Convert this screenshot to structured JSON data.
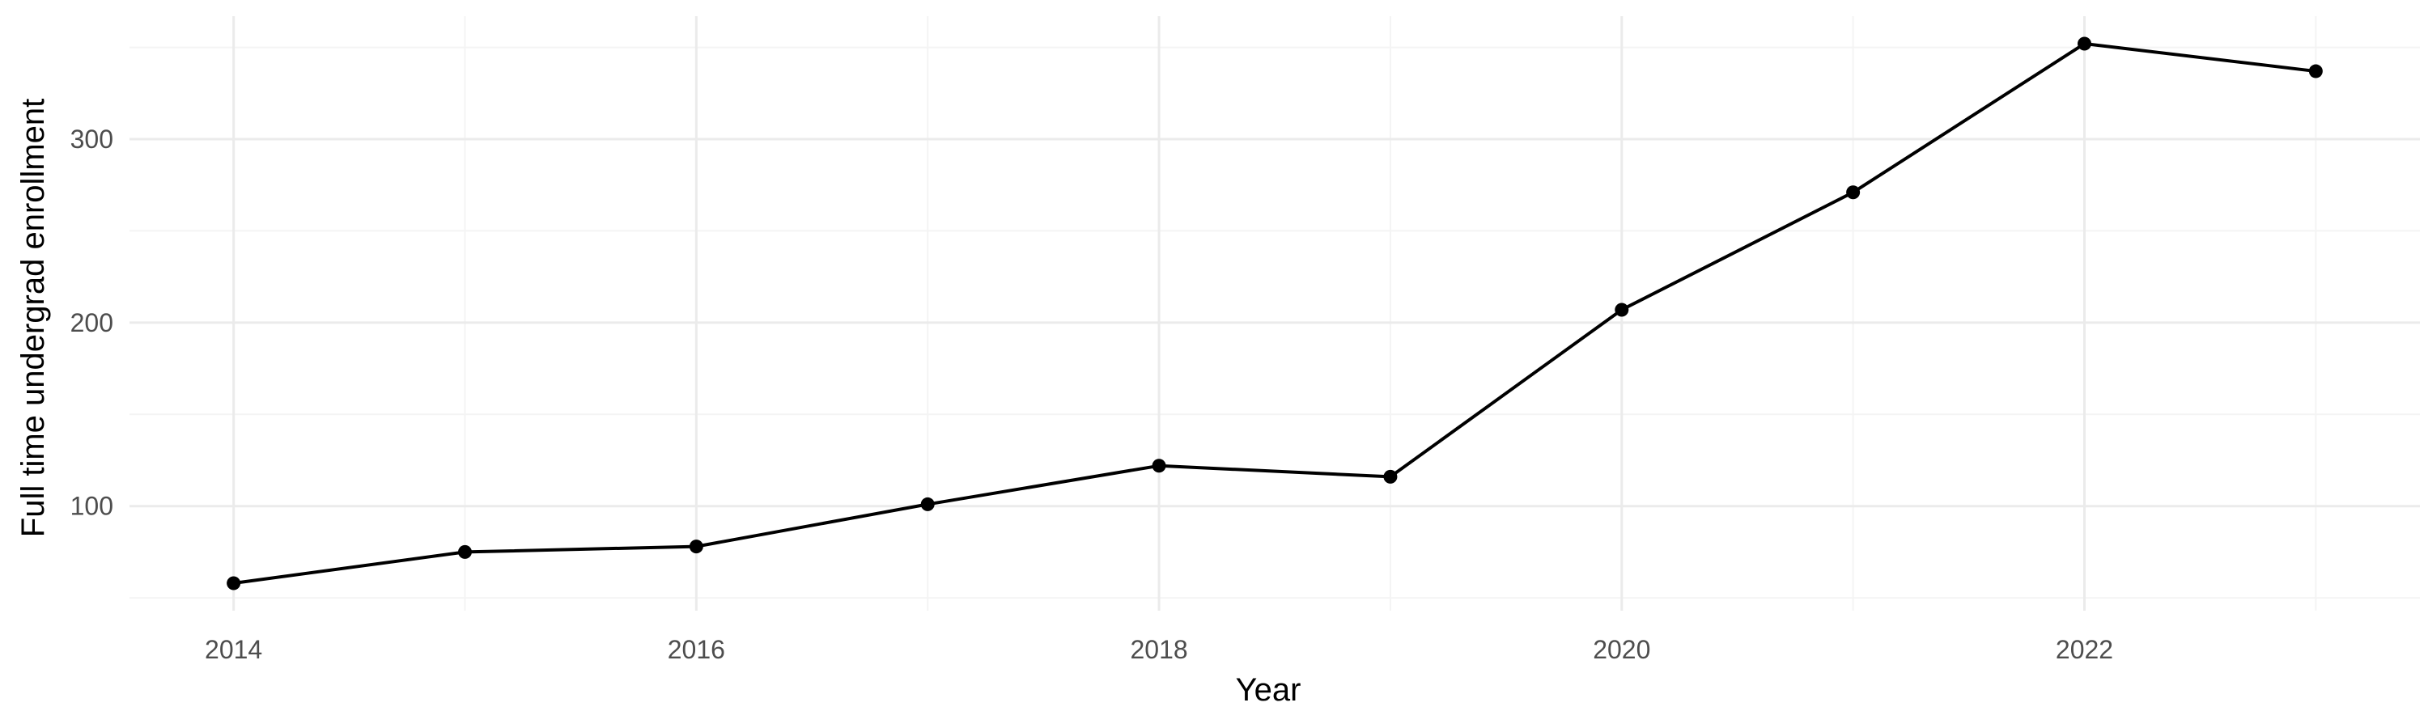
{
  "chart_data": {
    "type": "line",
    "title": "",
    "xlabel": "Year",
    "ylabel": "Full time undergrad enrollment",
    "x": [
      2014,
      2015,
      2016,
      2017,
      2018,
      2019,
      2020,
      2021,
      2022,
      2023
    ],
    "series": [
      {
        "values": [
          58,
          75,
          78,
          101,
          122,
          116,
          207,
          271,
          352,
          337
        ]
      }
    ],
    "xlim": [
      2013.55,
      2023.45
    ],
    "ylim": [
      43,
      367
    ],
    "x_ticks": [
      2014,
      2016,
      2018,
      2020,
      2022
    ],
    "x_tick_labels": [
      "2014",
      "2016",
      "2018",
      "2020",
      "2022"
    ],
    "y_ticks": [
      100,
      200,
      300
    ],
    "y_tick_labels": [
      "100",
      "200",
      "300"
    ],
    "grid": true,
    "legend": "none",
    "colors": {
      "line": "#000000",
      "point": "#000000",
      "grid_major": "#ebebeb",
      "grid_minor": "#f4f4f4",
      "tick_text": "#4d4d4d"
    }
  }
}
